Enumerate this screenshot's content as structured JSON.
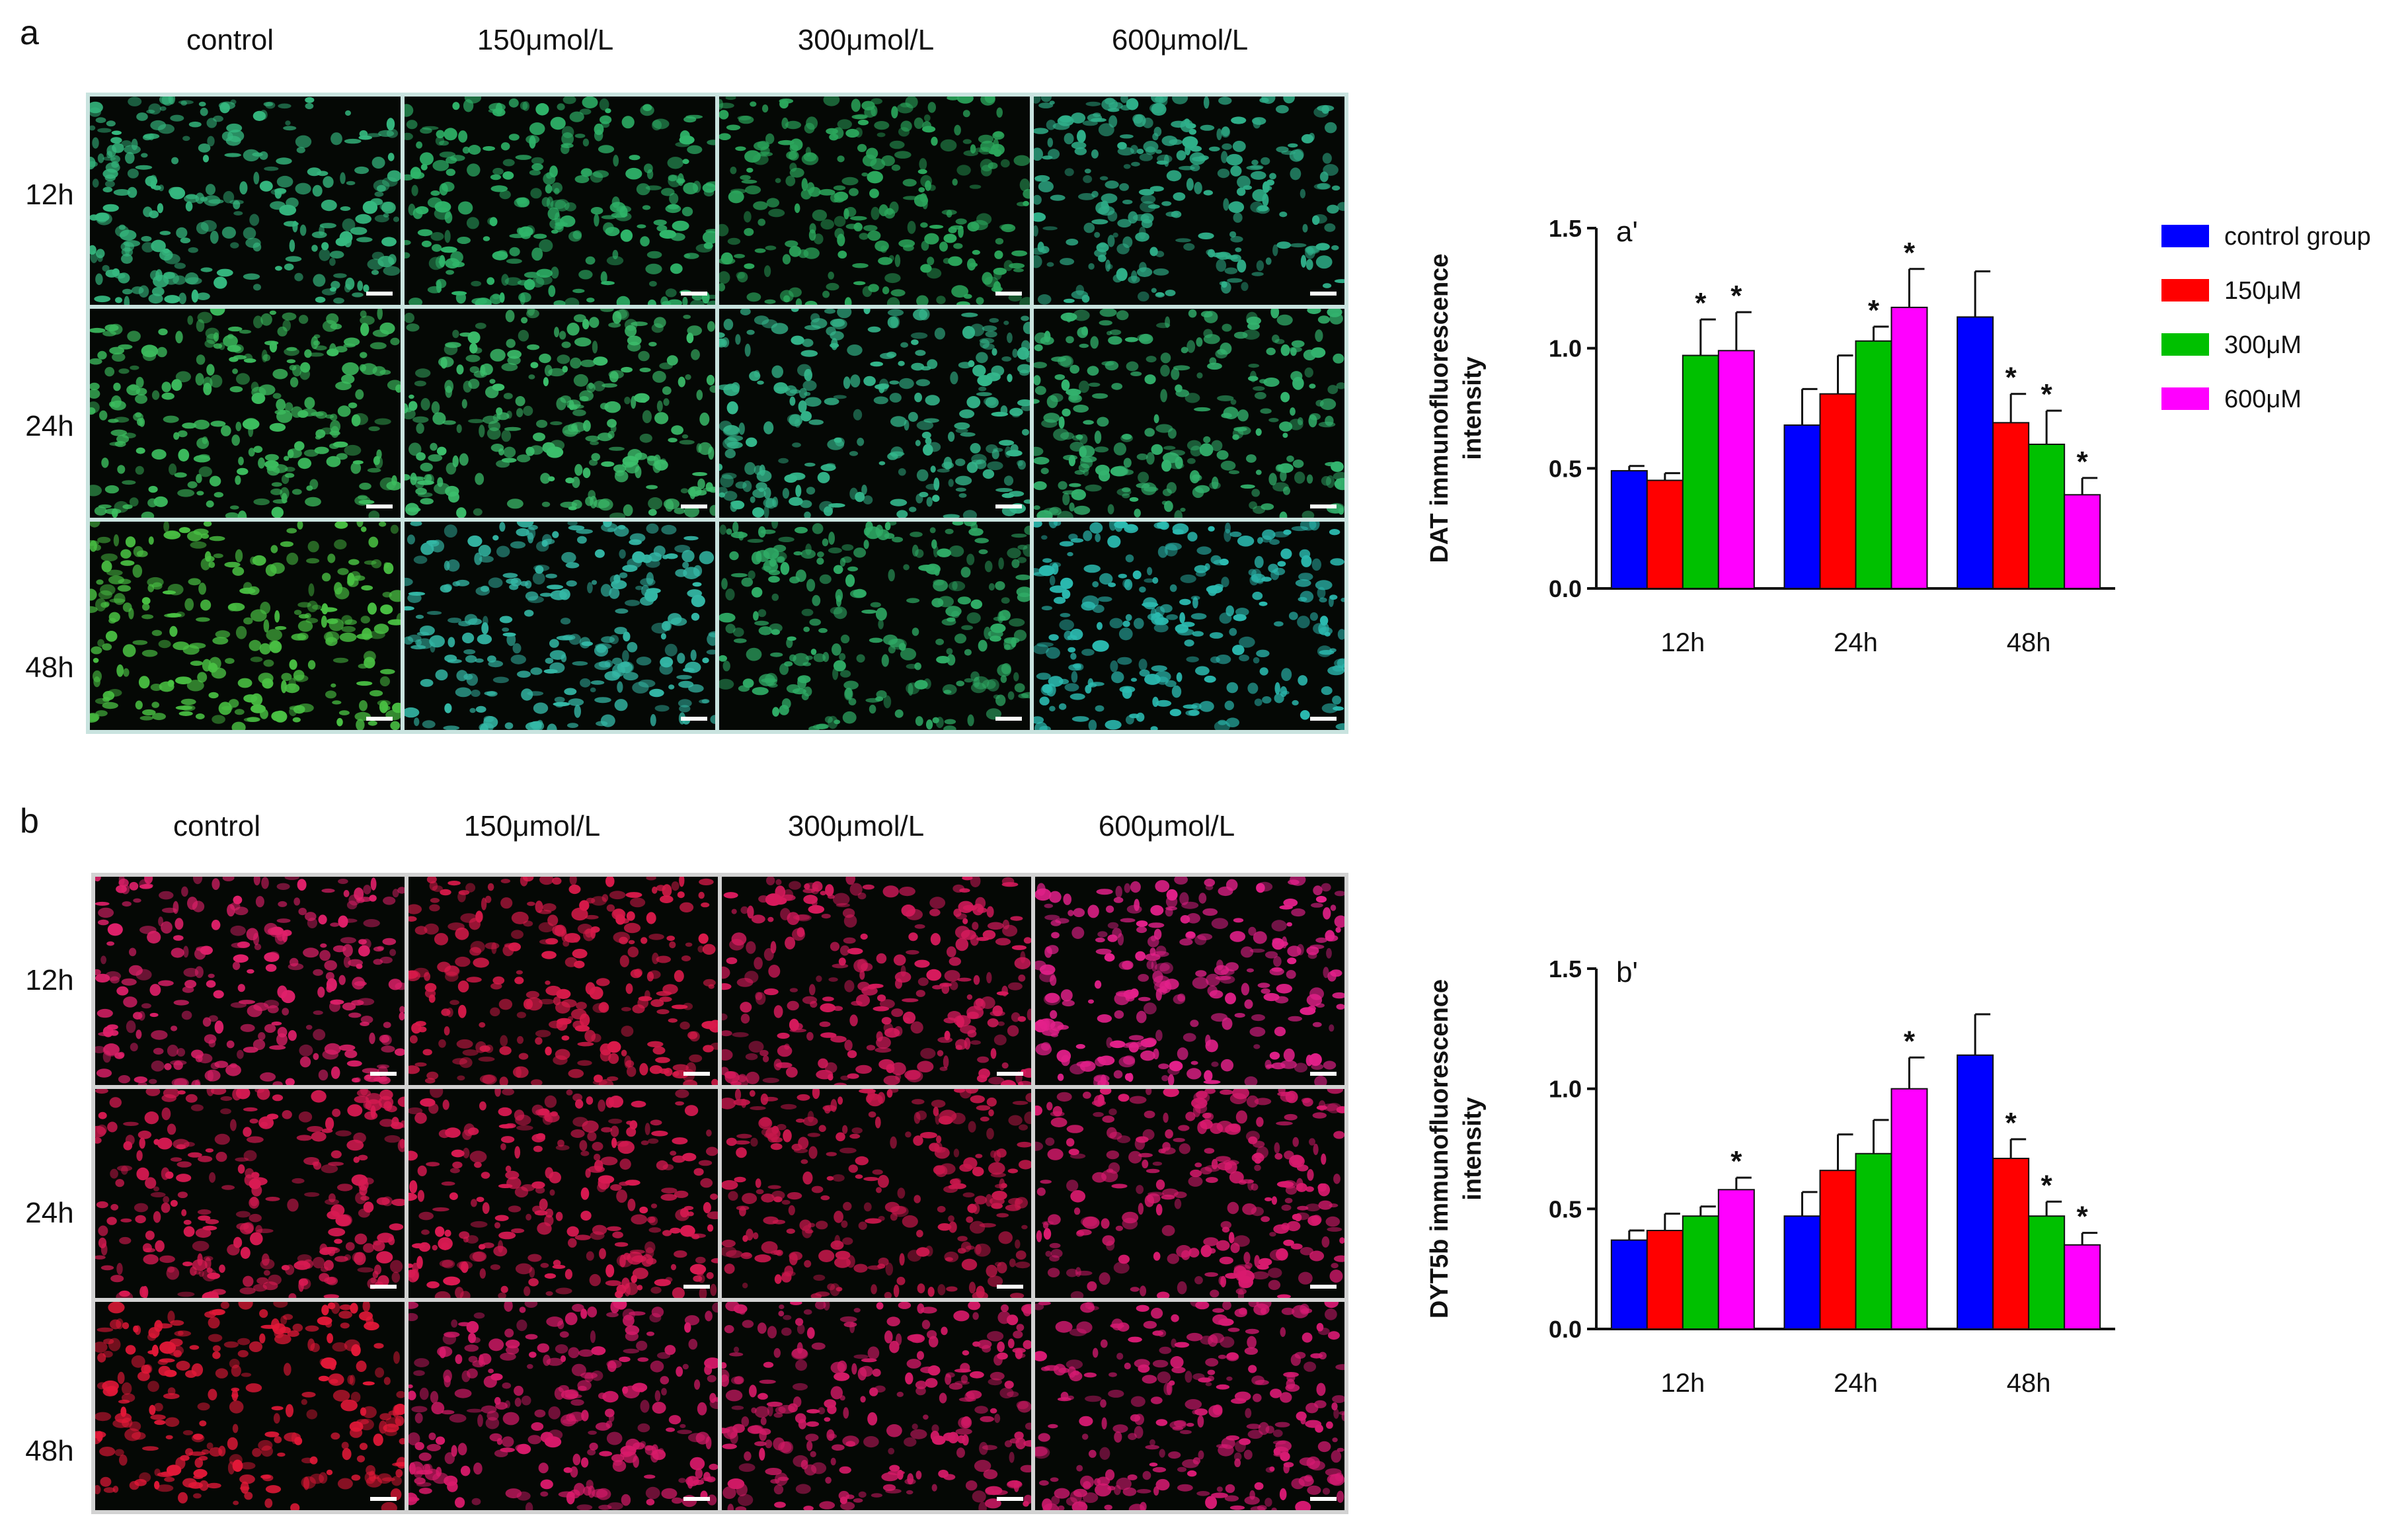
{
  "panel_a": {
    "letter": "a",
    "columns": [
      "control",
      "150μmol/L",
      "300μmol/L",
      "600μmol/L"
    ],
    "rows": [
      "12h",
      "24h",
      "48h"
    ],
    "cell_colors": [
      [
        "#35b87f",
        "#2fb56a",
        "#2ba75c",
        "#2fb08a"
      ],
      [
        "#3cbc5e",
        "#3cbf6c",
        "#34b78c",
        "#33b36e"
      ],
      [
        "#49c043",
        "#34b8a6",
        "#2fac66",
        "#2bbab0"
      ]
    ]
  },
  "panel_b": {
    "letter": "b",
    "columns": [
      "control",
      "150μmol/L",
      "300μmol/L",
      "600μmol/L"
    ],
    "rows": [
      "12h",
      "24h",
      "48h"
    ],
    "cell_colors": [
      [
        "#e0206a",
        "#d91a4a",
        "#d61a5c",
        "#e3208a"
      ],
      [
        "#d81a52",
        "#d91a52",
        "#c8174c",
        "#d91a6e"
      ],
      [
        "#e31838",
        "#d81a6a",
        "#d21a66",
        "#d61a72"
      ]
    ]
  },
  "legend": {
    "entries": [
      {
        "label": "control group",
        "color": "#0000ff"
      },
      {
        "label": "150μM",
        "color": "#ff0000"
      },
      {
        "label": "300μM",
        "color": "#00c000"
      },
      {
        "label": "600μM",
        "color": "#ff00ff"
      }
    ]
  },
  "chart_data": [
    {
      "type": "bar",
      "panel_label": "a'",
      "ylabel_line1": "DAT immunofluorescence",
      "ylabel_line2": "intensity",
      "xlabel": "",
      "categories": [
        "12h",
        "24h",
        "48h"
      ],
      "ylim": [
        0,
        1.5
      ],
      "yticks": [
        "0.0",
        "0.5",
        "1.0",
        "1.5"
      ],
      "series": [
        {
          "name": "control group",
          "color": "#0000ff",
          "values": [
            0.49,
            0.68,
            1.13
          ],
          "errors": [
            0.02,
            0.15,
            0.19
          ],
          "sig": [
            false,
            false,
            false
          ]
        },
        {
          "name": "150μM",
          "color": "#ff0000",
          "values": [
            0.45,
            0.81,
            0.69
          ],
          "errors": [
            0.03,
            0.16,
            0.12
          ],
          "sig": [
            false,
            false,
            true
          ]
        },
        {
          "name": "300μM",
          "color": "#00c000",
          "values": [
            0.97,
            1.03,
            0.6
          ],
          "errors": [
            0.15,
            0.06,
            0.14
          ],
          "sig": [
            true,
            true,
            true
          ]
        },
        {
          "name": "600μM",
          "color": "#ff00ff",
          "values": [
            0.99,
            1.17,
            0.39
          ],
          "errors": [
            0.16,
            0.16,
            0.07
          ],
          "sig": [
            true,
            true,
            true
          ]
        }
      ]
    },
    {
      "type": "bar",
      "panel_label": "b'",
      "ylabel_line1": "DYT5b immunofluorescence",
      "ylabel_line2": "intensity",
      "xlabel": "",
      "categories": [
        "12h",
        "24h",
        "48h"
      ],
      "ylim": [
        0,
        1.5
      ],
      "yticks": [
        "0.0",
        "0.5",
        "1.0",
        "1.5"
      ],
      "series": [
        {
          "name": "control group",
          "color": "#0000ff",
          "values": [
            0.37,
            0.47,
            1.14
          ],
          "errors": [
            0.04,
            0.1,
            0.17
          ],
          "sig": [
            false,
            false,
            false
          ]
        },
        {
          "name": "150μM",
          "color": "#ff0000",
          "values": [
            0.41,
            0.66,
            0.71
          ],
          "errors": [
            0.07,
            0.15,
            0.08
          ],
          "sig": [
            false,
            false,
            true
          ]
        },
        {
          "name": "300μM",
          "color": "#00c000",
          "values": [
            0.47,
            0.73,
            0.47
          ],
          "errors": [
            0.04,
            0.14,
            0.06
          ],
          "sig": [
            false,
            false,
            true
          ]
        },
        {
          "name": "600μM",
          "color": "#ff00ff",
          "values": [
            0.58,
            1.0,
            0.35
          ],
          "errors": [
            0.05,
            0.13,
            0.05
          ],
          "sig": [
            true,
            true,
            true
          ]
        }
      ]
    }
  ]
}
